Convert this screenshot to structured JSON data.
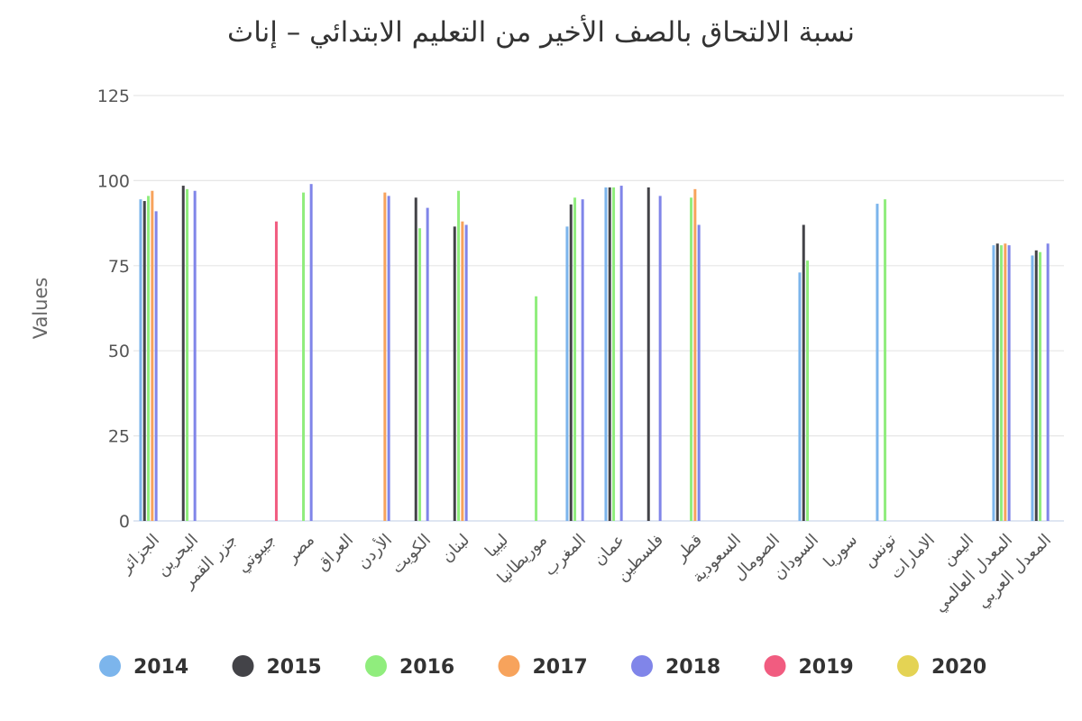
{
  "chart_data": {
    "type": "bar",
    "title": "نسبة الالتحاق بالصف الأخير من التعليم الابتدائي – إناث",
    "xlabel": "",
    "ylabel": "Values",
    "ylim": [
      0,
      125
    ],
    "yticks": [
      0,
      25,
      50,
      75,
      100,
      125
    ],
    "grid": true,
    "legend_position": "bottom",
    "categories": [
      "الجزائر",
      "البحرين",
      "جزر القمر",
      "جيبوتي",
      "مصر",
      "العراق",
      "الأردن",
      "الكويت",
      "لبنان",
      "ليبيا",
      "موريطانيا",
      "المغرب",
      "عمان",
      "فلسطين",
      "قطر",
      "السعودية",
      "الصومال",
      "السودان",
      "سوريا",
      "تونس",
      "الامارات",
      "اليمن",
      "المعدل العالمي",
      "المعدل العربي"
    ],
    "series": [
      {
        "name": "2014",
        "color": "#7cb5ec",
        "values": [
          94.5,
          null,
          null,
          null,
          null,
          null,
          null,
          null,
          null,
          null,
          null,
          86.5,
          98,
          null,
          null,
          null,
          null,
          73,
          null,
          93.2,
          null,
          null,
          81,
          78
        ]
      },
      {
        "name": "2015",
        "color": "#434348",
        "values": [
          94,
          98.5,
          null,
          null,
          null,
          null,
          null,
          95,
          86.5,
          null,
          null,
          93,
          98,
          98,
          null,
          null,
          null,
          87,
          null,
          null,
          null,
          null,
          81.5,
          79.5
        ]
      },
      {
        "name": "2016",
        "color": "#90ed7d",
        "values": [
          95.5,
          97.5,
          null,
          null,
          96.5,
          null,
          null,
          86,
          97,
          null,
          66,
          95,
          98,
          null,
          95,
          null,
          null,
          76.5,
          null,
          94.5,
          null,
          null,
          81,
          79
        ]
      },
      {
        "name": "2017",
        "color": "#f7a35c",
        "values": [
          97,
          null,
          null,
          null,
          null,
          null,
          96.5,
          null,
          88,
          null,
          null,
          null,
          null,
          null,
          97.5,
          null,
          null,
          null,
          null,
          null,
          null,
          null,
          81.5,
          null
        ]
      },
      {
        "name": "2018",
        "color": "#8085e9",
        "values": [
          91,
          97,
          null,
          null,
          99,
          null,
          95.5,
          92,
          87,
          null,
          null,
          94.5,
          98.5,
          95.5,
          87,
          null,
          null,
          null,
          null,
          null,
          null,
          null,
          81,
          81.5
        ]
      },
      {
        "name": "2019",
        "color": "#f15c80",
        "values": [
          null,
          null,
          null,
          88,
          null,
          null,
          null,
          null,
          null,
          null,
          null,
          null,
          null,
          null,
          null,
          null,
          null,
          null,
          null,
          null,
          null,
          null,
          null,
          null
        ]
      },
      {
        "name": "2020",
        "color": "#e4d354",
        "values": [
          null,
          null,
          null,
          null,
          null,
          null,
          null,
          null,
          null,
          null,
          null,
          null,
          null,
          null,
          null,
          null,
          null,
          null,
          null,
          null,
          null,
          null,
          null,
          null
        ]
      }
    ]
  }
}
